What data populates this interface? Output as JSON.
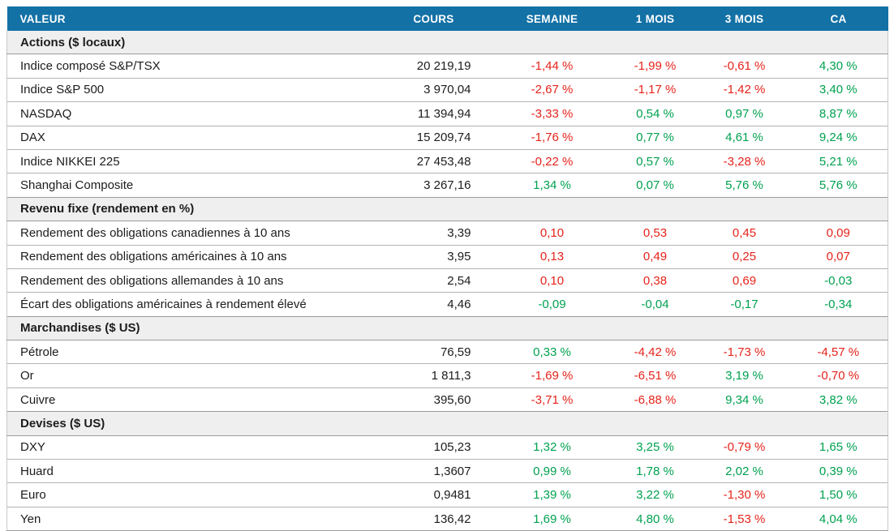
{
  "colors": {
    "header_bg": "#1371a6",
    "header_text": "#ffffff",
    "negative_red": "#e5231b",
    "positive_green": "#00a150",
    "section_bg": "#efefef",
    "row_text": "#1c1c1c"
  },
  "chart_data": {
    "type": "table",
    "columns": [
      "VALEUR",
      "COURS",
      "SEMAINE",
      "1 MOIS",
      "3 MOIS",
      "CA"
    ],
    "sections": [
      {
        "title": "Actions ($ locaux)",
        "rows": [
          {
            "label": "Indice composé S&P/TSX",
            "cours": "20 219,19",
            "values": [
              {
                "text": "-1,44 %",
                "color": "red"
              },
              {
                "text": "-1,99 %",
                "color": "red"
              },
              {
                "text": "-0,61 %",
                "color": "red"
              },
              {
                "text": "4,30 %",
                "color": "green"
              }
            ]
          },
          {
            "label": "Indice S&P 500",
            "cours": "3 970,04",
            "values": [
              {
                "text": "-2,67 %",
                "color": "red"
              },
              {
                "text": "-1,17 %",
                "color": "red"
              },
              {
                "text": "-1,42 %",
                "color": "red"
              },
              {
                "text": "3,40 %",
                "color": "green"
              }
            ]
          },
          {
            "label": "NASDAQ",
            "cours": "11 394,94",
            "values": [
              {
                "text": "-3,33 %",
                "color": "red"
              },
              {
                "text": "0,54 %",
                "color": "green"
              },
              {
                "text": "0,97 %",
                "color": "green"
              },
              {
                "text": "8,87 %",
                "color": "green"
              }
            ]
          },
          {
            "label": "DAX",
            "cours": "15 209,74",
            "values": [
              {
                "text": "-1,76 %",
                "color": "red"
              },
              {
                "text": "0,77 %",
                "color": "green"
              },
              {
                "text": "4,61 %",
                "color": "green"
              },
              {
                "text": "9,24 %",
                "color": "green"
              }
            ]
          },
          {
            "label": "Indice NIKKEI 225",
            "cours": "27 453,48",
            "values": [
              {
                "text": "-0,22 %",
                "color": "red"
              },
              {
                "text": "0,57 %",
                "color": "green"
              },
              {
                "text": "-3,28 %",
                "color": "red"
              },
              {
                "text": "5,21 %",
                "color": "green"
              }
            ]
          },
          {
            "label": "Shanghai Composite",
            "cours": "3 267,16",
            "values": [
              {
                "text": "1,34 %",
                "color": "green"
              },
              {
                "text": "0,07 %",
                "color": "green"
              },
              {
                "text": "5,76 %",
                "color": "green"
              },
              {
                "text": "5,76 %",
                "color": "green"
              }
            ]
          }
        ]
      },
      {
        "title": "Revenu fixe (rendement en %)",
        "rows": [
          {
            "label": "Rendement des obligations canadiennes à 10 ans",
            "cours": "3,39",
            "values": [
              {
                "text": "0,10",
                "color": "red"
              },
              {
                "text": "0,53",
                "color": "red"
              },
              {
                "text": "0,45",
                "color": "red"
              },
              {
                "text": "0,09",
                "color": "red"
              }
            ]
          },
          {
            "label": "Rendement des obligations américaines à 10 ans",
            "cours": "3,95",
            "values": [
              {
                "text": "0,13",
                "color": "red"
              },
              {
                "text": "0,49",
                "color": "red"
              },
              {
                "text": "0,25",
                "color": "red"
              },
              {
                "text": "0,07",
                "color": "red"
              }
            ]
          },
          {
            "label": "Rendement des obligations allemandes à 10 ans",
            "cours": "2,54",
            "values": [
              {
                "text": "0,10",
                "color": "red"
              },
              {
                "text": "0,38",
                "color": "red"
              },
              {
                "text": "0,69",
                "color": "red"
              },
              {
                "text": "-0,03",
                "color": "green"
              }
            ]
          },
          {
            "label": "Écart des obligations américaines à rendement élevé",
            "cours": "4,46",
            "values": [
              {
                "text": "-0,09",
                "color": "green"
              },
              {
                "text": "-0,04",
                "color": "green"
              },
              {
                "text": "-0,17",
                "color": "green"
              },
              {
                "text": "-0,34",
                "color": "green"
              }
            ]
          }
        ]
      },
      {
        "title": "Marchandises ($ US)",
        "rows": [
          {
            "label": "Pétrole",
            "cours": "76,59",
            "values": [
              {
                "text": "0,33 %",
                "color": "green"
              },
              {
                "text": "-4,42 %",
                "color": "red"
              },
              {
                "text": "-1,73 %",
                "color": "red"
              },
              {
                "text": "-4,57 %",
                "color": "red"
              }
            ]
          },
          {
            "label": "Or",
            "cours": "1 811,3",
            "values": [
              {
                "text": "-1,69 %",
                "color": "red"
              },
              {
                "text": "-6,51 %",
                "color": "red"
              },
              {
                "text": "3,19 %",
                "color": "green"
              },
              {
                "text": "-0,70 %",
                "color": "red"
              }
            ]
          },
          {
            "label": "Cuivre",
            "cours": "395,60",
            "values": [
              {
                "text": "-3,71 %",
                "color": "red"
              },
              {
                "text": "-6,88 %",
                "color": "red"
              },
              {
                "text": "9,34 %",
                "color": "green"
              },
              {
                "text": "3,82 %",
                "color": "green"
              }
            ]
          }
        ]
      },
      {
        "title": "Devises ($ US)",
        "rows": [
          {
            "label": "DXY",
            "cours": "105,23",
            "values": [
              {
                "text": "1,32 %",
                "color": "green"
              },
              {
                "text": "3,25 %",
                "color": "green"
              },
              {
                "text": "-0,79 %",
                "color": "red"
              },
              {
                "text": "1,65 %",
                "color": "green"
              }
            ]
          },
          {
            "label": "Huard",
            "cours": "1,3607",
            "values": [
              {
                "text": "0,99 %",
                "color": "green"
              },
              {
                "text": "1,78 %",
                "color": "green"
              },
              {
                "text": "2,02 %",
                "color": "green"
              },
              {
                "text": "0,39 %",
                "color": "green"
              }
            ]
          },
          {
            "label": "Euro",
            "cours": "0,9481",
            "values": [
              {
                "text": "1,39 %",
                "color": "green"
              },
              {
                "text": "3,22 %",
                "color": "green"
              },
              {
                "text": "-1,30 %",
                "color": "red"
              },
              {
                "text": "1,50 %",
                "color": "green"
              }
            ]
          },
          {
            "label": "Yen",
            "cours": "136,42",
            "values": [
              {
                "text": "1,69 %",
                "color": "green"
              },
              {
                "text": "4,80 %",
                "color": "green"
              },
              {
                "text": "-1,53 %",
                "color": "red"
              },
              {
                "text": "4,04 %",
                "color": "green"
              }
            ]
          }
        ]
      }
    ]
  }
}
